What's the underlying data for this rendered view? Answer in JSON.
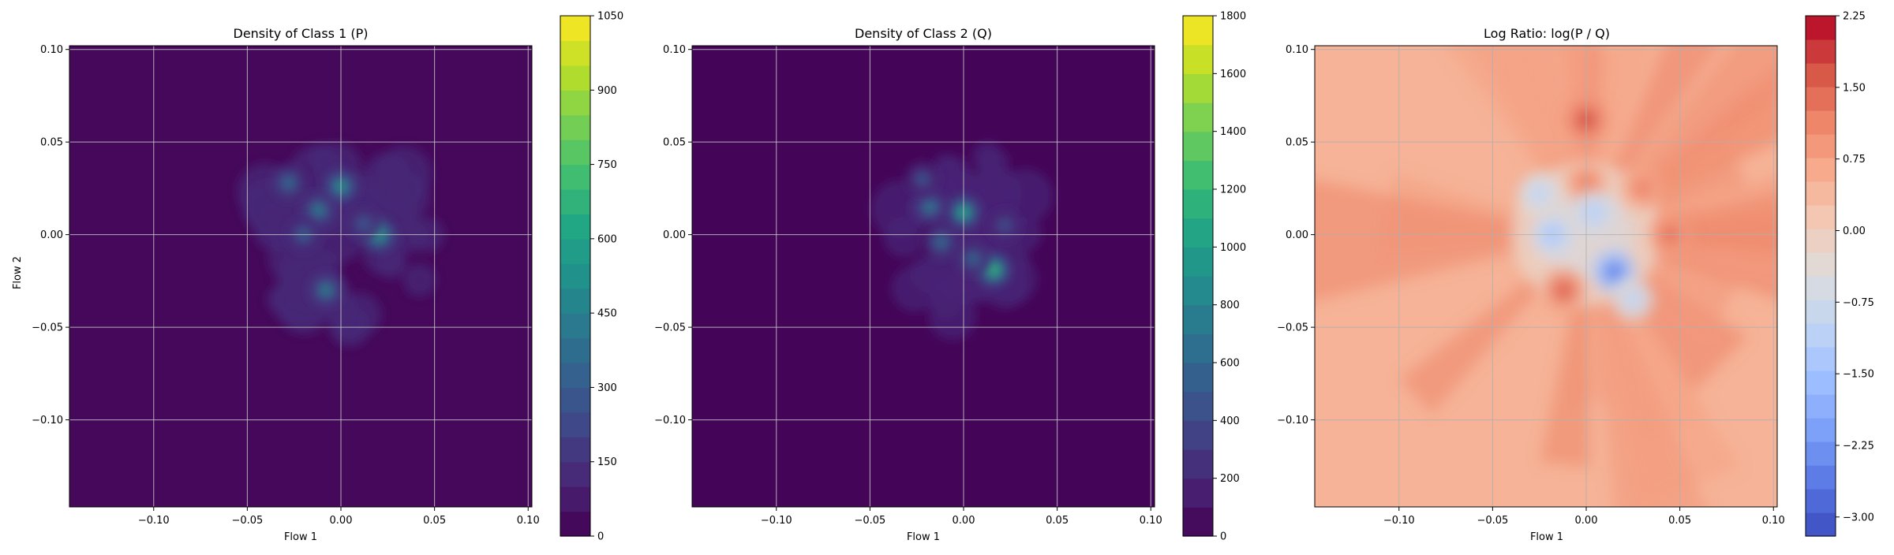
{
  "chart_data": [
    {
      "type": "heatmap",
      "title": "Density of Class 1 (P)",
      "xlabel": "Flow 1",
      "ylabel": "Flow 2",
      "xlim": [
        -0.145,
        0.102
      ],
      "ylim": [
        -0.147,
        0.102
      ],
      "x_ticks": [
        "−0.10",
        "−0.05",
        "0.00",
        "0.05",
        "0.10"
      ],
      "x_tick_values": [
        -0.1,
        -0.05,
        0.0,
        0.05,
        0.1
      ],
      "y_ticks": [
        "0.10",
        "0.05",
        "0.00",
        "−0.05",
        "−0.10"
      ],
      "y_tick_values": [
        0.1,
        0.05,
        0.0,
        -0.05,
        -0.1
      ],
      "grid": true,
      "colormap": "viridis",
      "colorbar": {
        "range": [
          0,
          1050
        ],
        "tick_values": [
          0,
          150,
          300,
          450,
          600,
          750,
          900,
          1050
        ],
        "tick_labels": [
          "0",
          "150",
          "300",
          "450",
          "600",
          "750",
          "900",
          "1050"
        ]
      },
      "peaks": [
        {
          "x": 0.0,
          "y": 0.026,
          "value": 560
        },
        {
          "x": 0.02,
          "y": 0.0,
          "value": 640
        },
        {
          "x": -0.012,
          "y": 0.013,
          "value": 460
        },
        {
          "x": -0.028,
          "y": 0.028,
          "value": 380
        },
        {
          "x": -0.02,
          "y": 0.0,
          "value": 340
        },
        {
          "x": -0.008,
          "y": -0.03,
          "value": 460
        },
        {
          "x": 0.012,
          "y": 0.006,
          "value": 300
        }
      ],
      "background_value": 20
    },
    {
      "type": "heatmap",
      "title": "Density of Class 2 (Q)",
      "xlabel": "Flow 1",
      "ylabel": "",
      "xlim": [
        -0.145,
        0.102
      ],
      "ylim": [
        -0.147,
        0.102
      ],
      "x_ticks": [
        "−0.10",
        "−0.05",
        "0.00",
        "0.05",
        "0.10"
      ],
      "x_tick_values": [
        -0.1,
        -0.05,
        0.0,
        0.05,
        0.1
      ],
      "y_ticks": [
        "0.10",
        "0.05",
        "0.00",
        "−0.05",
        "−0.10"
      ],
      "y_tick_values": [
        0.1,
        0.05,
        0.0,
        -0.05,
        -0.1
      ],
      "grid": true,
      "colormap": "viridis",
      "colorbar": {
        "range": [
          0,
          1800
        ],
        "tick_values": [
          0,
          200,
          400,
          600,
          800,
          1000,
          1200,
          1400,
          1600,
          1800
        ],
        "tick_labels": [
          "0",
          "200",
          "400",
          "600",
          "800",
          "1000",
          "1200",
          "1400",
          "1600",
          "1800"
        ]
      },
      "peaks": [
        {
          "x": 0.0,
          "y": 0.012,
          "value": 1100
        },
        {
          "x": 0.016,
          "y": -0.019,
          "value": 1250
        },
        {
          "x": -0.018,
          "y": 0.015,
          "value": 750
        },
        {
          "x": -0.012,
          "y": -0.004,
          "value": 650
        },
        {
          "x": 0.005,
          "y": -0.013,
          "value": 600
        },
        {
          "x": -0.022,
          "y": 0.03,
          "value": 500
        },
        {
          "x": 0.022,
          "y": 0.005,
          "value": 450
        }
      ],
      "background_value": 20
    },
    {
      "type": "heatmap",
      "title": "Log Ratio: log(P / Q)",
      "xlabel": "Flow 1",
      "ylabel": "",
      "xlim": [
        -0.145,
        0.102
      ],
      "ylim": [
        -0.147,
        0.102
      ],
      "x_ticks": [
        "−0.10",
        "−0.05",
        "0.00",
        "0.05",
        "0.10"
      ],
      "x_tick_values": [
        -0.1,
        -0.05,
        0.0,
        0.05,
        0.1
      ],
      "y_ticks": [
        "0.10",
        "0.05",
        "0.00",
        "−0.05",
        "−0.10"
      ],
      "y_tick_values": [
        0.1,
        0.05,
        0.0,
        -0.05,
        -0.1
      ],
      "grid": true,
      "colormap": "coolwarm",
      "colorbar": {
        "range": [
          -3.2,
          2.25
        ],
        "tick_values": [
          2.25,
          1.5,
          0.75,
          0.0,
          -0.75,
          -1.5,
          -2.25,
          -3.0
        ],
        "tick_labels": [
          "2.25",
          "1.50",
          "0.75",
          "0.00",
          "−0.75",
          "−1.50",
          "−2.25",
          "−3.00"
        ]
      },
      "background_value": 0.5,
      "features": [
        {
          "x": 0.0,
          "y": 0.062,
          "value": 1.8
        },
        {
          "x": 0.03,
          "y": 0.025,
          "value": 1.2
        },
        {
          "x": 0.045,
          "y": 0.0,
          "value": 1.4
        },
        {
          "x": -0.012,
          "y": -0.03,
          "value": 1.6
        },
        {
          "x": 0.0,
          "y": 0.028,
          "value": 1.2
        },
        {
          "x": 0.015,
          "y": -0.02,
          "value": -2.6
        },
        {
          "x": -0.018,
          "y": 0.0,
          "value": -1.4
        },
        {
          "x": 0.004,
          "y": 0.012,
          "value": -1.2
        },
        {
          "x": -0.025,
          "y": 0.022,
          "value": -1.0
        },
        {
          "x": 0.025,
          "y": -0.035,
          "value": -1.0
        }
      ]
    }
  ]
}
